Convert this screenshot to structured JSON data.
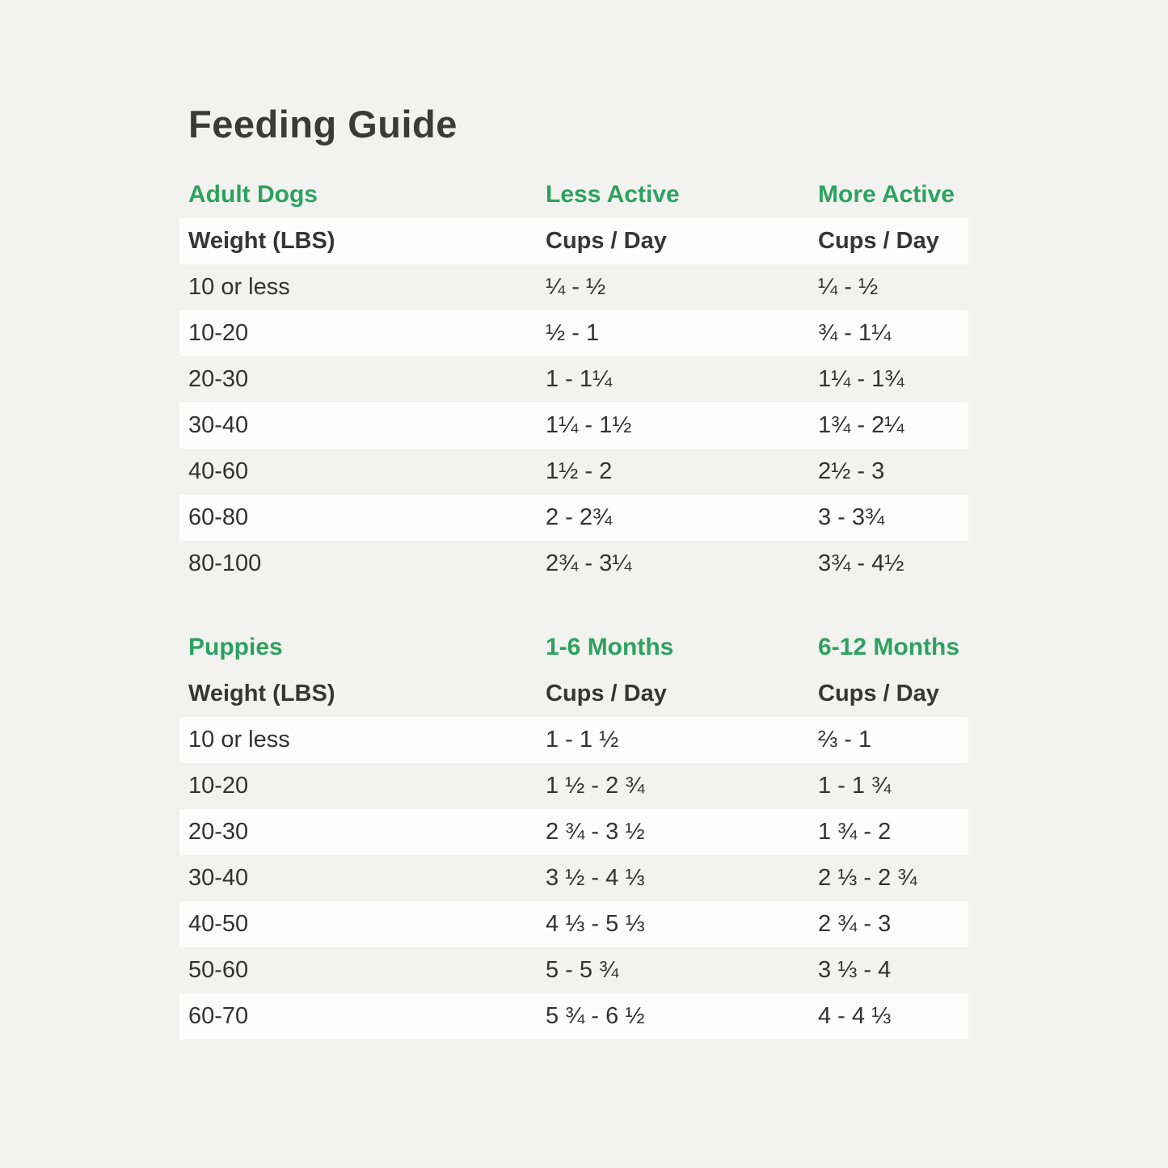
{
  "title": "Feeding Guide",
  "colors": {
    "accent_green": "#2da25f",
    "text_dark": "#3a3a3a",
    "row_band_white": "#fdfdfd",
    "page_background": "#f2f2f0"
  },
  "chart_data": [
    {
      "type": "table",
      "section_title": "Adult Dogs",
      "column_group_headers": [
        "Adult Dogs",
        "Less Active",
        "More Active"
      ],
      "column_headers": [
        "Weight (LBS)",
        "Cups / Day",
        "Cups / Day"
      ],
      "rows": [
        [
          "10 or less",
          "¼ - ½",
          "¼ - ½"
        ],
        [
          "10-20",
          "½ - 1",
          "¾ - 1¼"
        ],
        [
          "20-30",
          "1 - 1¼",
          "1¼ - 1¾"
        ],
        [
          "30-40",
          "1¼ - 1½",
          "1¾ - 2¼"
        ],
        [
          "40-60",
          "1½ - 2",
          "2½ - 3"
        ],
        [
          "60-80",
          "2 - 2¾",
          "3 - 3¾"
        ],
        [
          "80-100",
          "2¾ - 3¼",
          "3¾ - 4½"
        ]
      ]
    },
    {
      "type": "table",
      "section_title": "Puppies",
      "column_group_headers": [
        "Puppies",
        "1-6 Months",
        "6-12 Months"
      ],
      "column_headers": [
        "Weight (LBS)",
        "Cups / Day",
        "Cups / Day"
      ],
      "rows": [
        [
          "10 or less",
          "1 - 1 ½",
          "⅔ - 1"
        ],
        [
          "10-20",
          "1 ½ - 2 ¾",
          "1 - 1 ¾"
        ],
        [
          "20-30",
          "2 ¾ - 3 ½",
          "1 ¾ - 2"
        ],
        [
          "30-40",
          "3 ½ - 4 ⅓",
          "2 ⅓ - 2 ¾"
        ],
        [
          "40-50",
          "4 ⅓ - 5 ⅓",
          "2 ¾ - 3"
        ],
        [
          "50-60",
          "5 - 5 ¾",
          "3 ⅓ - 4"
        ],
        [
          "60-70",
          "5 ¾ - 6 ½",
          "4 - 4 ⅓"
        ]
      ]
    }
  ]
}
